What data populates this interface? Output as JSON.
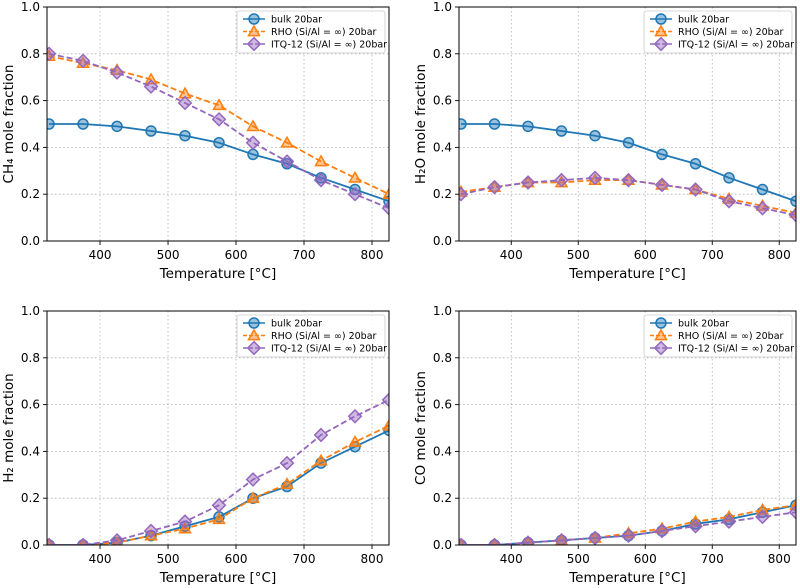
{
  "chart_data": [
    {
      "type": "line",
      "xlabel": "Temperature [°C]",
      "ylabel": "CH₄ mole fraction",
      "xlim": [
        322,
        825
      ],
      "ylim": [
        0,
        1.0
      ],
      "xticks": [
        "400",
        "500",
        "600",
        "700",
        "800"
      ],
      "yticks": [
        "0.0",
        "0.2",
        "0.4",
        "0.6",
        "0.8",
        "1.0"
      ],
      "grid": true,
      "legend_position": "top-right",
      "x": [
        325,
        375,
        425,
        475,
        525,
        575,
        625,
        675,
        725,
        775,
        825
      ],
      "series": [
        {
          "name": "bulk 20bar",
          "color": "#1f77b4",
          "marker": "circle",
          "line": "solid",
          "values": [
            0.5,
            0.5,
            0.49,
            0.47,
            0.45,
            0.42,
            0.37,
            0.33,
            0.27,
            0.22,
            0.17
          ]
        },
        {
          "name": "RHO (Si/Al = ∞) 20bar",
          "color": "#ff7f0e",
          "marker": "triangle",
          "line": "dashed",
          "values": [
            0.79,
            0.76,
            0.73,
            0.69,
            0.63,
            0.58,
            0.49,
            0.42,
            0.34,
            0.27,
            0.2
          ]
        },
        {
          "name": "ITQ-12 (Si/Al = ∞) 20bar",
          "color": "#9467bd",
          "marker": "diamond",
          "line": "dashed",
          "values": [
            0.8,
            0.77,
            0.72,
            0.66,
            0.59,
            0.52,
            0.42,
            0.34,
            0.26,
            0.2,
            0.14
          ]
        }
      ]
    },
    {
      "type": "line",
      "xlabel": "Temperature [°C]",
      "ylabel": "H₂O mole fraction",
      "xlim": [
        322,
        825
      ],
      "ylim": [
        0,
        1.0
      ],
      "xticks": [
        "400",
        "500",
        "600",
        "700",
        "800"
      ],
      "yticks": [
        "0.0",
        "0.2",
        "0.4",
        "0.6",
        "0.8",
        "1.0"
      ],
      "grid": true,
      "legend_position": "top-right",
      "x": [
        325,
        375,
        425,
        475,
        525,
        575,
        625,
        675,
        725,
        775,
        825
      ],
      "series": [
        {
          "name": "bulk 20bar",
          "color": "#1f77b4",
          "marker": "circle",
          "line": "solid",
          "values": [
            0.5,
            0.5,
            0.49,
            0.47,
            0.45,
            0.42,
            0.37,
            0.33,
            0.27,
            0.22,
            0.17
          ]
        },
        {
          "name": "RHO (Si/Al = ∞) 20bar",
          "color": "#ff7f0e",
          "marker": "triangle",
          "line": "dashed",
          "values": [
            0.21,
            0.23,
            0.25,
            0.25,
            0.26,
            0.26,
            0.24,
            0.22,
            0.18,
            0.15,
            0.12
          ]
        },
        {
          "name": "ITQ-12 (Si/Al = ∞) 20bar",
          "color": "#9467bd",
          "marker": "diamond",
          "line": "dashed",
          "values": [
            0.2,
            0.23,
            0.25,
            0.26,
            0.27,
            0.26,
            0.24,
            0.22,
            0.17,
            0.14,
            0.11
          ]
        }
      ]
    },
    {
      "type": "line",
      "xlabel": "Temperature [°C]",
      "ylabel": "H₂ mole fraction",
      "xlim": [
        322,
        825
      ],
      "ylim": [
        0,
        1.0
      ],
      "xticks": [
        "400",
        "500",
        "600",
        "700",
        "800"
      ],
      "yticks": [
        "0.0",
        "0.2",
        "0.4",
        "0.6",
        "0.8",
        "1.0"
      ],
      "grid": true,
      "legend_position": "top-right",
      "x": [
        325,
        375,
        425,
        475,
        525,
        575,
        625,
        675,
        725,
        775,
        825
      ],
      "series": [
        {
          "name": "bulk 20bar",
          "color": "#1f77b4",
          "marker": "circle",
          "line": "solid",
          "values": [
            0.0,
            0.0,
            0.01,
            0.04,
            0.08,
            0.12,
            0.2,
            0.25,
            0.35,
            0.42,
            0.49
          ]
        },
        {
          "name": "RHO (Si/Al = ∞) 20bar",
          "color": "#ff7f0e",
          "marker": "triangle",
          "line": "dashed",
          "values": [
            0.0,
            0.0,
            0.01,
            0.04,
            0.07,
            0.11,
            0.2,
            0.26,
            0.36,
            0.44,
            0.51
          ]
        },
        {
          "name": "ITQ-12 (Si/Al = ∞) 20bar",
          "color": "#9467bd",
          "marker": "diamond",
          "line": "dashed",
          "values": [
            0.0,
            0.0,
            0.02,
            0.06,
            0.1,
            0.17,
            0.28,
            0.35,
            0.47,
            0.55,
            0.62
          ]
        }
      ]
    },
    {
      "type": "line",
      "xlabel": "Temperature [°C]",
      "ylabel": "CO mole fraction",
      "xlim": [
        322,
        825
      ],
      "ylim": [
        0,
        1.0
      ],
      "xticks": [
        "400",
        "500",
        "600",
        "700",
        "800"
      ],
      "yticks": [
        "0.0",
        "0.2",
        "0.4",
        "0.6",
        "0.8",
        "1.0"
      ],
      "grid": true,
      "legend_position": "top-right",
      "x": [
        325,
        375,
        425,
        475,
        525,
        575,
        625,
        675,
        725,
        775,
        825
      ],
      "series": [
        {
          "name": "bulk 20bar",
          "color": "#1f77b4",
          "marker": "circle",
          "line": "solid",
          "values": [
            0.0,
            0.0,
            0.01,
            0.02,
            0.03,
            0.04,
            0.06,
            0.09,
            0.11,
            0.14,
            0.17
          ]
        },
        {
          "name": "RHO (Si/Al = ∞) 20bar",
          "color": "#ff7f0e",
          "marker": "triangle",
          "line": "dashed",
          "values": [
            0.0,
            0.0,
            0.01,
            0.02,
            0.03,
            0.05,
            0.07,
            0.1,
            0.12,
            0.15,
            0.17
          ]
        },
        {
          "name": "ITQ-12 (Si/Al = ∞) 20bar",
          "color": "#9467bd",
          "marker": "diamond",
          "line": "dashed",
          "values": [
            0.0,
            0.0,
            0.01,
            0.02,
            0.03,
            0.04,
            0.06,
            0.08,
            0.1,
            0.12,
            0.14
          ]
        }
      ]
    }
  ]
}
